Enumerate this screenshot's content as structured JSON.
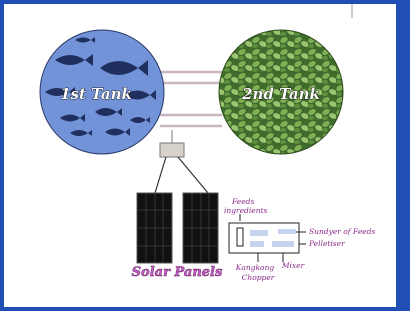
{
  "nodes": [
    {
      "label": "1st Tank"
    },
    {
      "label": "2nd Tank"
    },
    {
      "label": "Solar Panels"
    },
    {
      "lines": [
        "Feeds",
        "ingredients"
      ]
    },
    {
      "label": "Sundyer of Feeds"
    },
    {
      "label": "Pelletiser"
    },
    {
      "lines": [
        "Kangkong",
        "Chopper"
      ]
    },
    {
      "label": "Mixer"
    }
  ]
}
